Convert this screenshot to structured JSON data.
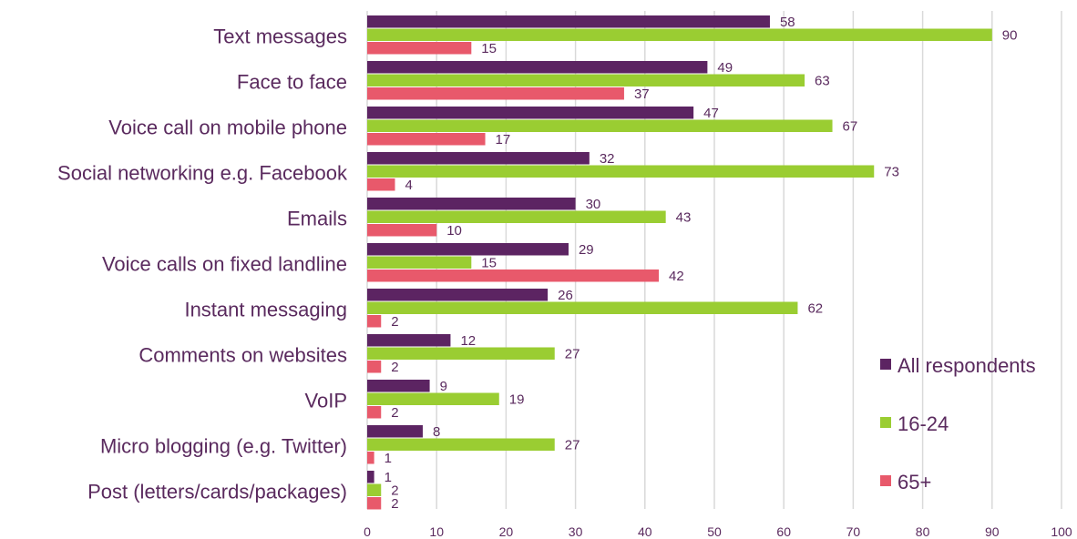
{
  "chart_data": {
    "type": "bar",
    "orientation": "horizontal",
    "categories": [
      "Text messages",
      "Face to face",
      "Voice call on mobile phone",
      "Social networking e.g. Facebook",
      "Emails",
      "Voice calls on fixed landline",
      "Instant messaging",
      "Comments on websites",
      "VoIP",
      "Micro blogging (e.g. Twitter)",
      "Post (letters/cards/packages)"
    ],
    "series": [
      {
        "name": "All respondents",
        "color": "#5c2462",
        "values": [
          58,
          49,
          47,
          32,
          30,
          29,
          26,
          12,
          9,
          8,
          1
        ]
      },
      {
        "name": "16-24",
        "color": "#9acd32",
        "values": [
          90,
          63,
          67,
          73,
          43,
          15,
          62,
          27,
          19,
          27,
          2
        ]
      },
      {
        "name": "65+",
        "color": "#e8596b",
        "values": [
          15,
          37,
          17,
          4,
          10,
          42,
          2,
          2,
          2,
          1,
          2
        ]
      }
    ],
    "xlim": [
      0,
      100
    ],
    "xticks": [
      0,
      10,
      20,
      30,
      40,
      50,
      60,
      70,
      80,
      90,
      100
    ],
    "grid": true,
    "legend_position": "bottom-right",
    "title": "",
    "xlabel": "",
    "ylabel": ""
  }
}
